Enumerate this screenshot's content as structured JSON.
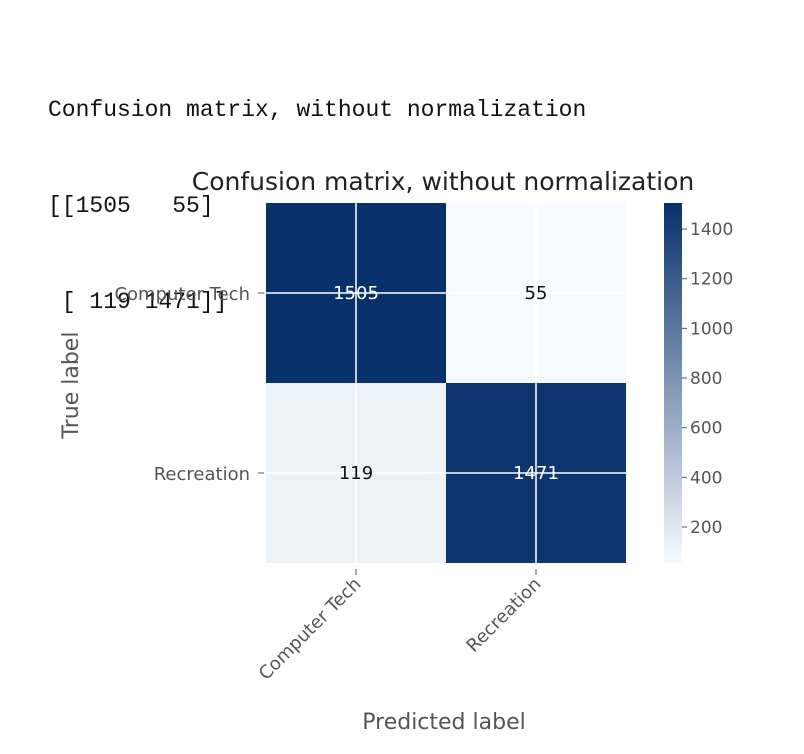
{
  "console": {
    "heading": "Confusion matrix, without normalization",
    "matrix_lines": [
      "[[1505   55]",
      " [ 119 1471]]"
    ]
  },
  "chart_data": {
    "type": "heatmap",
    "title": "Confusion matrix, without normalization",
    "xlabel": "Predicted label",
    "ylabel": "True label",
    "x_categories": [
      "Computer Tech",
      "Recreation"
    ],
    "y_categories": [
      "Computer Tech",
      "Recreation"
    ],
    "values": [
      [
        1505,
        55
      ],
      [
        119,
        1471
      ]
    ],
    "colormap": "Blues",
    "vmin": 55,
    "vmax": 1505,
    "colorbar_ticks": [
      200,
      400,
      600,
      800,
      1000,
      1200,
      1400
    ],
    "grid": true,
    "colors": {
      "low": "#f7fbff",
      "high": "#08306b",
      "text_dark": "#111111",
      "text_light": "#ffffff"
    }
  }
}
